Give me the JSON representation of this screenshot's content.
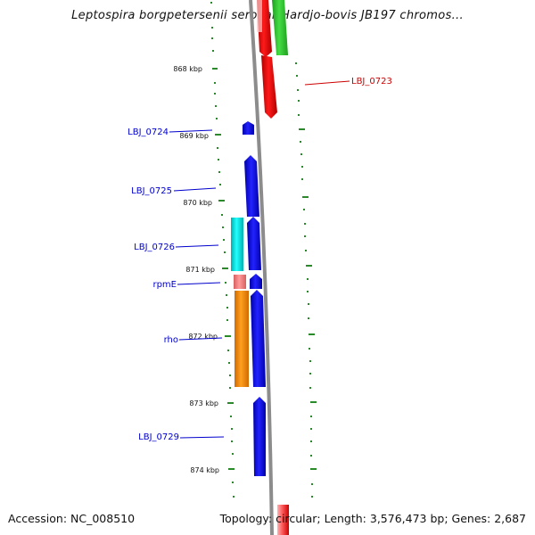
{
  "title": "Leptospira borgpetersenii serovar Hardjo-bovis JB197 chromos...",
  "footer": {
    "accession": "Accession: NC_008510",
    "summary": "Topology: circular; Length: 3,576,473 bp; Genes: 2,687"
  },
  "colors": {
    "backbone": "#8c8c8c",
    "tick": "#2a8a2a",
    "label_blue": "#0000cc",
    "label_red": "#cc0000",
    "cds_blue": "#0000ee",
    "rrna_red": "#ee0000",
    "other_green": "#33cc33",
    "cyan": "#00e5e5",
    "orange": "#ff8800",
    "pink": "#f08080"
  },
  "ticks": [
    {
      "label": "868 kbp"
    },
    {
      "label": "869 kbp"
    },
    {
      "label": "870 kbp"
    },
    {
      "label": "871 kbp"
    },
    {
      "label": "872 kbp"
    },
    {
      "label": "873 kbp"
    },
    {
      "label": "874 kbp"
    }
  ],
  "gene_labels": [
    {
      "text": "LBJ_0723",
      "color": "red"
    },
    {
      "text": "LBJ_0724",
      "color": "blue"
    },
    {
      "text": "LBJ_0725",
      "color": "blue"
    },
    {
      "text": "LBJ_0726",
      "color": "blue"
    },
    {
      "text": "rpmE",
      "color": "blue"
    },
    {
      "text": "rho",
      "color": "blue"
    },
    {
      "text": "LBJ_0729",
      "color": "blue"
    }
  ]
}
